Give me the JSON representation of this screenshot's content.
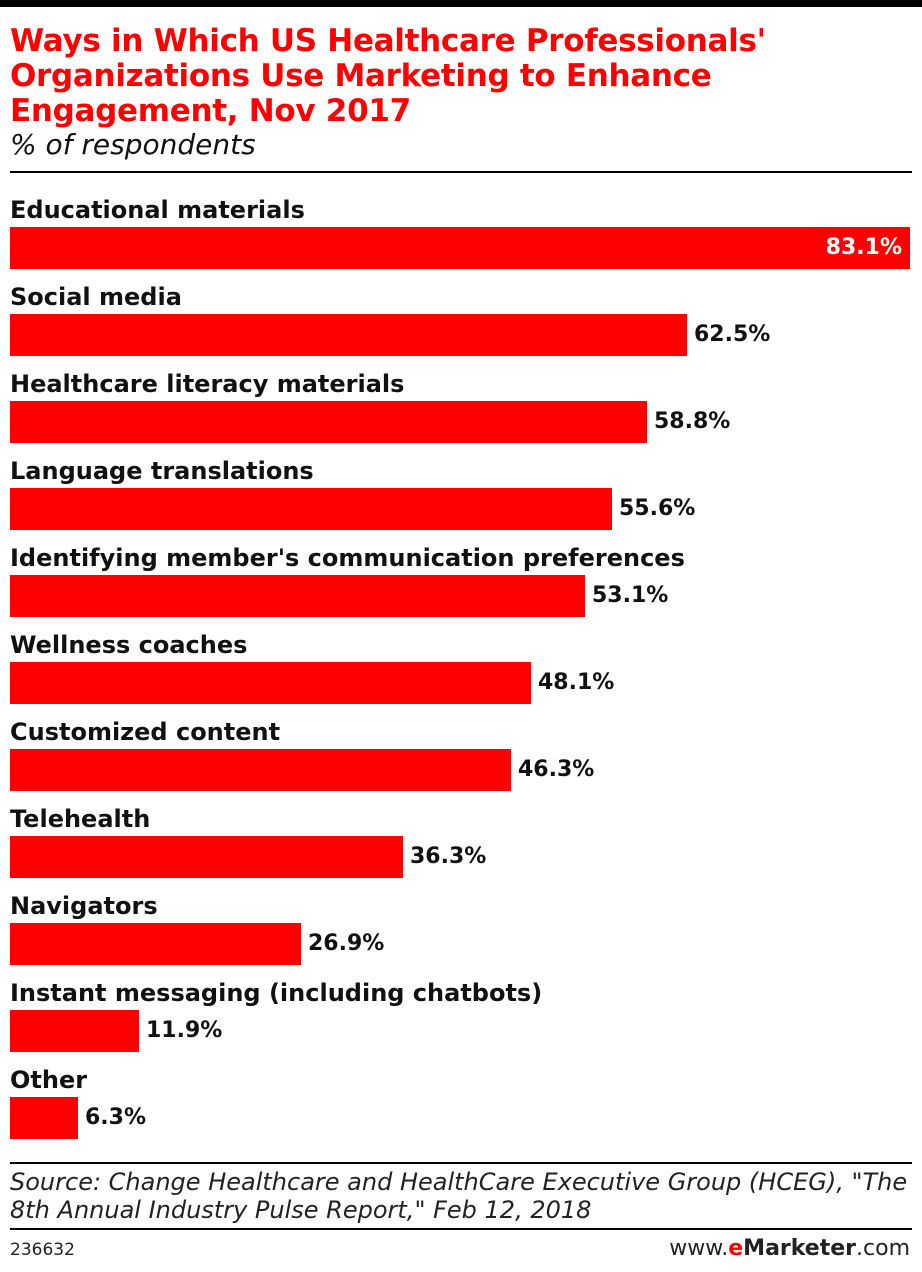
{
  "chart_data": {
    "type": "bar",
    "orientation": "horizontal",
    "title": "Ways in Which US Healthcare Professionals' Organizations Use Marketing to Enhance Engagement, Nov 2017",
    "subtitle": "% of respondents",
    "categories": [
      "Educational materials",
      "Social media",
      "Healthcare literacy materials",
      "Language translations",
      "Identifying member's communication preferences",
      "Wellness coaches",
      "Customized content",
      "Telehealth",
      "Navigators",
      "Instant messaging (including chatbots)",
      "Other"
    ],
    "values": [
      83.1,
      62.5,
      58.8,
      55.6,
      53.1,
      48.1,
      46.3,
      36.3,
      26.9,
      11.9,
      6.3
    ],
    "value_labels": [
      "83.1%",
      "62.5%",
      "58.8%",
      "55.6%",
      "53.1%",
      "48.1%",
      "46.3%",
      "36.3%",
      "26.9%",
      "11.9%",
      "6.3%"
    ],
    "xlim": [
      0,
      83.1
    ],
    "grid": false,
    "bar_color": "#ff0000",
    "title_color": "#ff0000"
  },
  "footer": {
    "source": "Source: Change Healthcare and HealthCare Executive Group (HCEG), \"The 8th Annual Industry Pulse Report,\" Feb 12, 2018",
    "chart_id": "236632",
    "brand_prefix": "www.",
    "brand_e": "e",
    "brand_name": "Marketer",
    "brand_suffix": ".com"
  }
}
